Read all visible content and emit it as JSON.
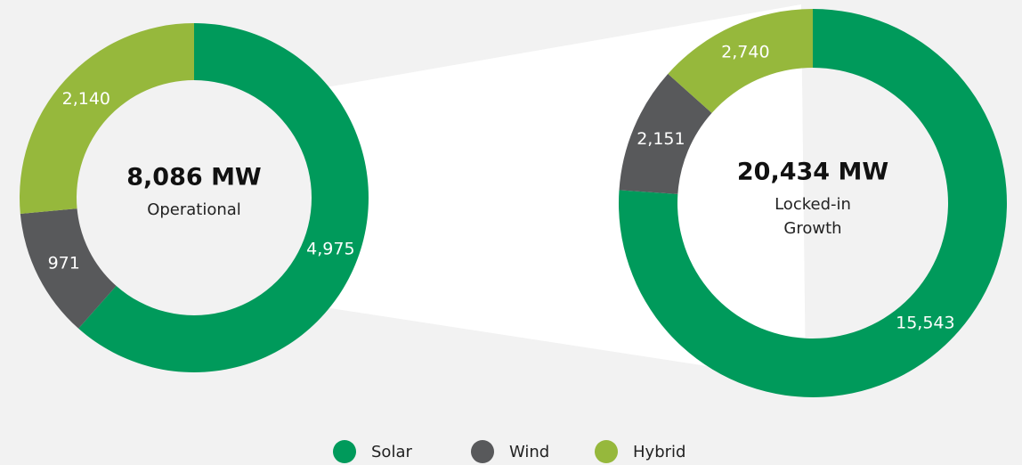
{
  "legend": {
    "categories": [
      "Solar",
      "Wind",
      "Hybrid"
    ],
    "colors": [
      "#009a5b",
      "#58595b",
      "#96b83c"
    ]
  },
  "chart_data": [
    {
      "type": "pie",
      "total": "8,086 MW",
      "label": [
        "Operational"
      ],
      "values": [
        4975,
        971,
        2140
      ],
      "value_labels": [
        "4,975",
        "971",
        "2,140"
      ]
    },
    {
      "type": "pie",
      "total": "20,434 MW",
      "label": [
        "Locked-in",
        "Growth"
      ],
      "values": [
        15543,
        2151,
        2740
      ],
      "value_labels": [
        "15,543",
        "2,151",
        "2,740"
      ]
    }
  ]
}
